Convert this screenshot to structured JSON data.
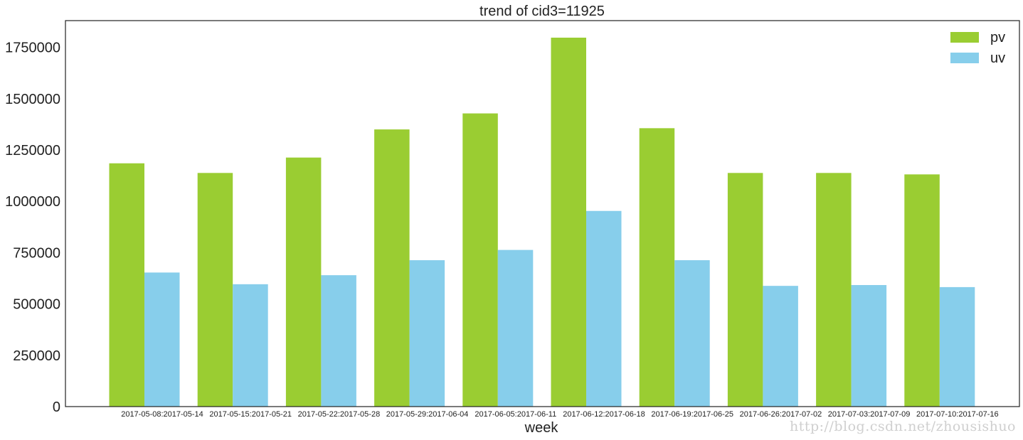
{
  "chart_data": {
    "type": "bar",
    "title": "trend of cid3=11925",
    "xlabel": "week",
    "ylabel": "",
    "ylim": [
      0,
      1880000
    ],
    "yticks": [
      0,
      250000,
      500000,
      750000,
      1000000,
      1250000,
      1500000,
      1750000
    ],
    "ytick_labels": [
      "0",
      "250000",
      "500000",
      "750000",
      "1000000",
      "1250000",
      "1500000",
      "1750000"
    ],
    "grid": false,
    "legend_position": "top-right",
    "categories": [
      "2017-05-08:2017-05-14",
      "2017-05-15:2017-05-21",
      "2017-05-22:2017-05-28",
      "2017-05-29:2017-06-04",
      "2017-06-05:2017-06-11",
      "2017-06-12:2017-06-18",
      "2017-06-19:2017-06-25",
      "2017-06-26:2017-07-02",
      "2017-07-03:2017-07-09",
      "2017-07-10:2017-07-16"
    ],
    "series": [
      {
        "name": "pv",
        "color": "#9acd32",
        "values": [
          1185000,
          1138000,
          1213000,
          1350000,
          1428000,
          1797000,
          1356000,
          1138000,
          1138000,
          1131000
        ]
      },
      {
        "name": "uv",
        "color": "#87ceeb",
        "values": [
          653000,
          596000,
          640000,
          713000,
          763000,
          953000,
          713000,
          588000,
          592000,
          582000
        ]
      }
    ]
  },
  "watermark": "http://blog.csdn.net/zhousishuo"
}
